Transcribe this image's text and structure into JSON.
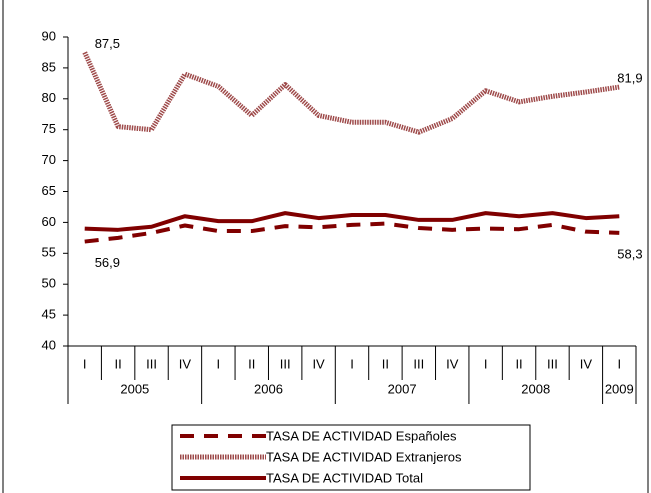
{
  "chart_data": {
    "type": "line",
    "categories": [
      "I",
      "II",
      "III",
      "IV",
      "I",
      "II",
      "III",
      "IV",
      "I",
      "II",
      "III",
      "IV",
      "I",
      "II",
      "III",
      "IV",
      "I"
    ],
    "groups": [
      {
        "label": "2005",
        "span": 4
      },
      {
        "label": "2006",
        "span": 4
      },
      {
        "label": "2007",
        "span": 4
      },
      {
        "label": "2008",
        "span": 4
      },
      {
        "label": "2009",
        "span": 1
      }
    ],
    "ylim": [
      40,
      90
    ],
    "yticks": [
      40,
      45,
      50,
      55,
      60,
      65,
      70,
      75,
      80,
      85,
      90
    ],
    "grid": false,
    "legend": "bottom",
    "series": [
      {
        "name": "TASA DE ACTIVIDAD Españoles",
        "color": "#800000",
        "style": "dashed",
        "values": [
          56.9,
          57.5,
          58.3,
          59.5,
          58.6,
          58.6,
          59.4,
          59.2,
          59.6,
          59.8,
          59.1,
          58.8,
          59.0,
          58.9,
          59.6,
          58.5,
          58.3
        ],
        "value_labels": [
          "56,9",
          null,
          null,
          null,
          null,
          null,
          null,
          null,
          null,
          null,
          null,
          null,
          null,
          null,
          null,
          null,
          "58,3"
        ]
      },
      {
        "name": "TASA DE ACTIVIDAD Extranjeros",
        "color": "#9e4a4a",
        "style": "hatched",
        "values": [
          87.5,
          75.5,
          75.0,
          84.0,
          82.0,
          77.3,
          82.3,
          77.3,
          76.2,
          76.2,
          74.6,
          76.8,
          81.3,
          79.5,
          80.4,
          81.1,
          81.9
        ],
        "value_labels": [
          "87,5",
          null,
          null,
          null,
          null,
          null,
          null,
          null,
          null,
          null,
          null,
          null,
          null,
          null,
          null,
          null,
          "81,9"
        ]
      },
      {
        "name": "TASA DE ACTIVIDAD Total",
        "color": "#800000",
        "style": "solid",
        "values": [
          59.0,
          58.8,
          59.3,
          61.0,
          60.2,
          60.2,
          61.5,
          60.7,
          61.2,
          61.2,
          60.4,
          60.4,
          61.5,
          61.0,
          61.5,
          60.7,
          61.0
        ]
      }
    ]
  }
}
